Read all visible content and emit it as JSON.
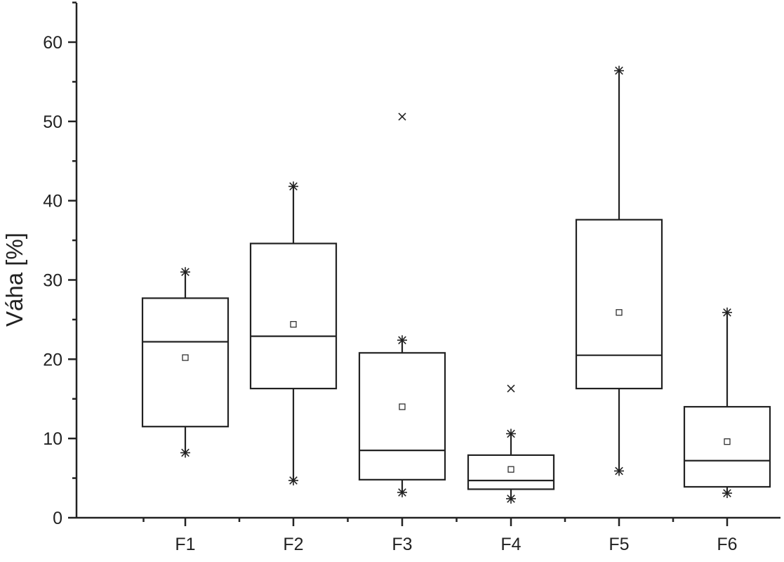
{
  "chart_data": {
    "type": "box",
    "title": "",
    "xlabel": "",
    "ylabel": "Váha [%]",
    "ylim": [
      0,
      65
    ],
    "yticks": [
      0,
      10,
      20,
      30,
      40,
      50,
      60
    ],
    "categories": [
      "F1",
      "F2",
      "F3",
      "F4",
      "F5",
      "F6"
    ],
    "boxes": [
      {
        "name": "F1",
        "whisker_low": 8.2,
        "q1": 11.5,
        "median": 22.2,
        "q3": 27.7,
        "whisker_high": 31.0,
        "mean": 20.2,
        "outliers": []
      },
      {
        "name": "F2",
        "whisker_low": 4.7,
        "q1": 16.3,
        "median": 22.9,
        "q3": 34.6,
        "whisker_high": 41.8,
        "mean": 24.4,
        "outliers": []
      },
      {
        "name": "F3",
        "whisker_low": 3.2,
        "q1": 4.8,
        "median": 8.5,
        "q3": 20.8,
        "whisker_high": 22.4,
        "mean": 14.0,
        "outliers": [
          50.6
        ]
      },
      {
        "name": "F4",
        "whisker_low": 2.4,
        "q1": 3.6,
        "median": 4.7,
        "q3": 7.9,
        "whisker_high": 10.6,
        "mean": 6.1,
        "outliers": [
          16.3
        ]
      },
      {
        "name": "F5",
        "whisker_low": 5.9,
        "q1": 16.3,
        "median": 20.5,
        "q3": 37.6,
        "whisker_high": 56.4,
        "mean": 25.9,
        "outliers": []
      },
      {
        "name": "F6",
        "whisker_low": 3.1,
        "q1": 3.9,
        "median": 7.2,
        "q3": 14.0,
        "whisker_high": 25.9,
        "mean": 9.6,
        "outliers": []
      }
    ],
    "legend": false,
    "grid": false
  }
}
